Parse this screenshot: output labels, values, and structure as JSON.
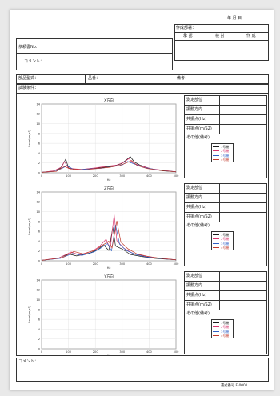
{
  "header": {
    "date_suffix": "年 月 日",
    "created_by_label": "作成部署：",
    "approval_labels": [
      "承 認",
      "検 討",
      "作 成"
    ],
    "doc_no_label": "依頼書No.：",
    "comment_label": "コメント：",
    "part_type_label": "部品型式：",
    "item_name_label": "品番：",
    "remarks_label": "備考：",
    "test_conditions_label": "試験条件："
  },
  "panel_labels": {
    "measure_point": "測定部位",
    "vibration_dir": "振動方向",
    "resonance_hz": "共振点(Hz)",
    "resonance_ms2": "共振点(m/S2)",
    "other": "その他(備考)"
  },
  "legend_entries": [
    "1号機",
    "2号機",
    "3号機",
    "4号機"
  ],
  "legend_colors": [
    "#1a1a1a",
    "#d6336c",
    "#2f5fc4",
    "#c0392b"
  ],
  "footer": {
    "comment_label": "コメント：",
    "form_no": "書式番号 F-0001"
  },
  "chart_data": [
    {
      "type": "line",
      "title": "X方向",
      "xlabel": "Hz",
      "ylabel": "Level(m/s²)",
      "xlim": [
        0,
        500
      ],
      "ylim": [
        0,
        14
      ],
      "xticks": [
        "0",
        "100",
        "200",
        "300",
        "400",
        "500"
      ],
      "yticks": [
        "0",
        "2",
        "4",
        "6",
        "8",
        "10",
        "12",
        "14"
      ],
      "series": [
        {
          "values": [
            [
              0,
              0.1
            ],
            [
              40,
              0.3
            ],
            [
              70,
              0.9
            ],
            [
              80,
              1.8
            ],
            [
              90,
              2.8
            ],
            [
              100,
              1.0
            ],
            [
              140,
              0.6
            ],
            [
              190,
              0.9
            ],
            [
              230,
              1.1
            ],
            [
              270,
              1.4
            ],
            [
              295,
              1.8
            ],
            [
              315,
              2.6
            ],
            [
              330,
              3.3
            ],
            [
              345,
              2.2
            ],
            [
              365,
              1.6
            ],
            [
              400,
              0.9
            ],
            [
              450,
              0.4
            ],
            [
              500,
              0.2
            ]
          ]
        },
        {
          "values": [
            [
              0,
              0.1
            ],
            [
              45,
              0.4
            ],
            [
              75,
              1.2
            ],
            [
              85,
              2.3
            ],
            [
              100,
              0.9
            ],
            [
              150,
              0.7
            ],
            [
              200,
              1.0
            ],
            [
              240,
              1.3
            ],
            [
              280,
              1.6
            ],
            [
              305,
              2.1
            ],
            [
              325,
              2.9
            ],
            [
              340,
              2.0
            ],
            [
              370,
              1.4
            ],
            [
              410,
              0.8
            ],
            [
              500,
              0.2
            ]
          ]
        },
        {
          "values": [
            [
              0,
              0.1
            ],
            [
              50,
              0.3
            ],
            [
              80,
              1.0
            ],
            [
              95,
              1.5
            ],
            [
              120,
              0.6
            ],
            [
              180,
              0.8
            ],
            [
              220,
              0.9
            ],
            [
              260,
              1.2
            ],
            [
              300,
              1.6
            ],
            [
              320,
              2.3
            ],
            [
              350,
              1.7
            ],
            [
              380,
              1.1
            ],
            [
              430,
              0.6
            ],
            [
              500,
              0.2
            ]
          ]
        },
        {
          "values": [
            [
              0,
              0.1
            ],
            [
              55,
              0.3
            ],
            [
              85,
              1.3
            ],
            [
              105,
              0.8
            ],
            [
              160,
              0.6
            ],
            [
              210,
              0.9
            ],
            [
              250,
              1.1
            ],
            [
              290,
              1.5
            ],
            [
              310,
              1.9
            ],
            [
              335,
              2.5
            ],
            [
              355,
              1.5
            ],
            [
              390,
              0.9
            ],
            [
              440,
              0.5
            ],
            [
              500,
              0.2
            ]
          ]
        }
      ]
    },
    {
      "type": "line",
      "title": "Z方向",
      "xlabel": "Hz",
      "ylabel": "Level(m/s²)",
      "xlim": [
        0,
        500
      ],
      "ylim": [
        0,
        14
      ],
      "xticks": [
        "0",
        "100",
        "200",
        "300",
        "400",
        "500"
      ],
      "yticks": [
        "0",
        "2",
        "4",
        "6",
        "8",
        "10",
        "12",
        "14"
      ],
      "series": [
        {
          "values": [
            [
              0,
              0.1
            ],
            [
              60,
              0.5
            ],
            [
              100,
              1.4
            ],
            [
              130,
              1.0
            ],
            [
              180,
              1.6
            ],
            [
              210,
              2.3
            ],
            [
              230,
              3.3
            ],
            [
              250,
              2.1
            ],
            [
              265,
              6.8
            ],
            [
              275,
              3.0
            ],
            [
              300,
              2.4
            ],
            [
              330,
              1.3
            ],
            [
              370,
              0.9
            ],
            [
              420,
              0.5
            ],
            [
              500,
              0.2
            ]
          ]
        },
        {
          "values": [
            [
              0,
              0.1
            ],
            [
              65,
              0.6
            ],
            [
              110,
              1.8
            ],
            [
              140,
              1.2
            ],
            [
              190,
              2.0
            ],
            [
              215,
              2.9
            ],
            [
              240,
              4.4
            ],
            [
              255,
              2.4
            ],
            [
              270,
              9.4
            ],
            [
              280,
              4.1
            ],
            [
              305,
              2.6
            ],
            [
              340,
              1.5
            ],
            [
              380,
              1.0
            ],
            [
              430,
              0.6
            ],
            [
              500,
              0.2
            ]
          ]
        },
        {
          "values": [
            [
              0,
              0.1
            ],
            [
              70,
              0.5
            ],
            [
              115,
              1.5
            ],
            [
              150,
              1.1
            ],
            [
              195,
              1.8
            ],
            [
              220,
              2.6
            ],
            [
              245,
              3.5
            ],
            [
              260,
              2.0
            ],
            [
              275,
              7.3
            ],
            [
              290,
              3.4
            ],
            [
              315,
              2.1
            ],
            [
              350,
              1.3
            ],
            [
              390,
              0.8
            ],
            [
              440,
              0.5
            ],
            [
              500,
              0.2
            ]
          ]
        },
        {
          "values": [
            [
              0,
              0.1
            ],
            [
              75,
              0.6
            ],
            [
              120,
              1.9
            ],
            [
              155,
              1.4
            ],
            [
              200,
              2.2
            ],
            [
              225,
              3.1
            ],
            [
              250,
              4.0
            ],
            [
              262,
              2.6
            ],
            [
              280,
              8.1
            ],
            [
              295,
              3.8
            ],
            [
              320,
              2.5
            ],
            [
              355,
              1.4
            ],
            [
              395,
              0.9
            ],
            [
              445,
              0.5
            ],
            [
              500,
              0.2
            ]
          ]
        }
      ]
    },
    {
      "type": "line",
      "title": "Y方向",
      "xlabel": "Hz",
      "ylabel": "Level(m/s²)",
      "xlim": [
        0,
        500
      ],
      "ylim": [
        0,
        14
      ],
      "xticks": [
        "0",
        "100",
        "200",
        "300",
        "400",
        "500"
      ],
      "yticks": [
        "0",
        "2",
        "4",
        "6",
        "8",
        "10",
        "12",
        "14"
      ],
      "series": []
    }
  ]
}
